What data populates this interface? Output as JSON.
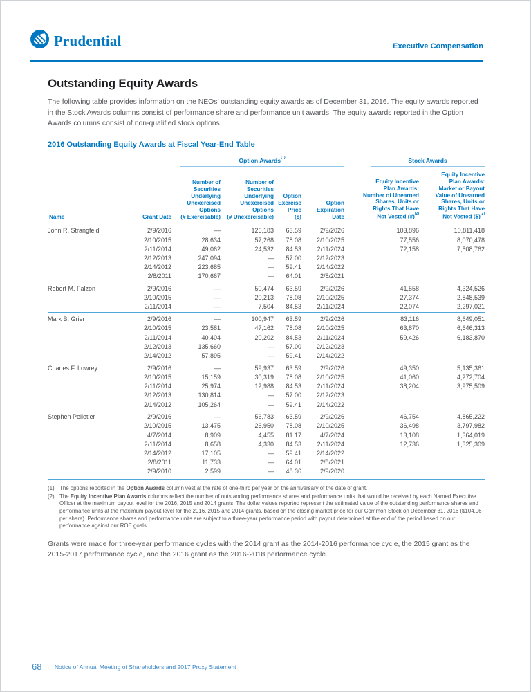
{
  "page": {
    "brand": "Prudential",
    "section_label": "Executive Compensation",
    "title": "Outstanding Equity Awards",
    "intro": "The following table provides information on the NEOs’ outstanding equity awards as of December 31, 2016. The equity awards reported in the Stock Awards columns consist of performance share and performance unit awards. The equity awards reported in the Option Awards columns consist of non-qualified stock options.",
    "closing": "Grants were made for three-year performance cycles with the 2014 grant as the 2014-2016 performance cycle, the 2015 grant as the 2015-2017 performance cycle, and the 2016 grant as the 2016-2018 performance cycle.",
    "footer": {
      "page_number": "68",
      "divider": "|",
      "text": "Notice of Annual Meeting of Shareholders and 2017 Proxy Statement"
    },
    "colors": {
      "brand_blue": "#0077C0",
      "table_rule_blue": "#4FA6DA",
      "light_rule_blue": "#8FC7EA",
      "body_gray": "#55565A"
    }
  },
  "table": {
    "caption": "2016 Outstanding Equity Awards at Fiscal Year-End Table",
    "groups": [
      {
        "label": "Option Awards",
        "sup": "(1)"
      },
      {
        "label": "Stock Awards",
        "sup": ""
      }
    ],
    "columns": [
      {
        "text": "Name",
        "sup": ""
      },
      {
        "text": "Grant Date",
        "sup": ""
      },
      {
        "text": "Number of\nSecurities\nUnderlying\nUnexercised\nOptions\n(# Exercisable)",
        "sup": ""
      },
      {
        "text": "Number of\nSecurities\nUnderlying\nUnexercised\nOptions\n(# Unexercisable)",
        "sup": ""
      },
      {
        "text": "Option\nExercise\nPrice\n($)",
        "sup": ""
      },
      {
        "text": "Option\nExpiration\nDate",
        "sup": ""
      },
      {
        "text": "Equity Incentive\nPlan Awards:\nNumber of Unearned\nShares, Units or\nRights That Have\nNot Vested (#)",
        "sup": "(2)"
      },
      {
        "text": "Equity Incentive\nPlan Awards:\nMarket or Payout\nValue of Unearned\nShares, Units or\nRights That Have\nNot Vested ($)",
        "sup": "(2)"
      }
    ],
    "rows": [
      [
        "John R. Strangfeld",
        "2/9/2016",
        "—",
        "126,183",
        "63.59",
        "2/9/2026",
        "103,896",
        "10,811,418"
      ],
      [
        "",
        "2/10/2015",
        "28,634",
        "57,268",
        "78.08",
        "2/10/2025",
        "77,556",
        "8,070,478"
      ],
      [
        "",
        "2/11/2014",
        "49,062",
        "24,532",
        "84.53",
        "2/11/2024",
        "72,158",
        "7,508,762"
      ],
      [
        "",
        "2/12/2013",
        "247,094",
        "—",
        "57.00",
        "2/12/2023",
        "",
        ""
      ],
      [
        "",
        "2/14/2012",
        "223,685",
        "—",
        "59.41",
        "2/14/2022",
        "",
        ""
      ],
      [
        "",
        "2/8/2011",
        "170,667",
        "—",
        "64.01",
        "2/8/2021",
        "",
        ""
      ],
      [
        "Robert M. Falzon",
        "2/9/2016",
        "—",
        "50,474",
        "63.59",
        "2/9/2026",
        "41,558",
        "4,324,526"
      ],
      [
        "",
        "2/10/2015",
        "—",
        "20,213",
        "78.08",
        "2/10/2025",
        "27,374",
        "2,848,539"
      ],
      [
        "",
        "2/11/2014",
        "—",
        "7,504",
        "84.53",
        "2/11/2024",
        "22,074",
        "2,297,021"
      ],
      [
        "Mark B. Grier",
        "2/9/2016",
        "—",
        "100,947",
        "63.59",
        "2/9/2026",
        "83,116",
        "8,649,051"
      ],
      [
        "",
        "2/10/2015",
        "23,581",
        "47,162",
        "78.08",
        "2/10/2025",
        "63,870",
        "6,646,313"
      ],
      [
        "",
        "2/11/2014",
        "40,404",
        "20,202",
        "84.53",
        "2/11/2024",
        "59,426",
        "6,183,870"
      ],
      [
        "",
        "2/12/2013",
        "135,660",
        "—",
        "57.00",
        "2/12/2023",
        "",
        ""
      ],
      [
        "",
        "2/14/2012",
        "57,895",
        "—",
        "59.41",
        "2/14/2022",
        "",
        ""
      ],
      [
        "Charles F. Lowrey",
        "2/9/2016",
        "—",
        "59,937",
        "63.59",
        "2/9/2026",
        "49,350",
        "5,135,361"
      ],
      [
        "",
        "2/10/2015",
        "15,159",
        "30,319",
        "78.08",
        "2/10/2025",
        "41,060",
        "4,272,704"
      ],
      [
        "",
        "2/11/2014",
        "25,974",
        "12,988",
        "84.53",
        "2/11/2024",
        "38,204",
        "3,975,509"
      ],
      [
        "",
        "2/12/2013",
        "130,814",
        "—",
        "57.00",
        "2/12/2023",
        "",
        ""
      ],
      [
        "",
        "2/14/2012",
        "105,264",
        "—",
        "59.41",
        "2/14/2022",
        "",
        ""
      ],
      [
        "Stephen Pelletier",
        "2/9/2016",
        "—",
        "56,783",
        "63.59",
        "2/9/2026",
        "46,754",
        "4,865,222"
      ],
      [
        "",
        "2/10/2015",
        "13,475",
        "26,950",
        "78.08",
        "2/10/2025",
        "36,498",
        "3,797,982"
      ],
      [
        "",
        "4/7/2014",
        "8,909",
        "4,455",
        "81.17",
        "4/7/2024",
        "13,108",
        "1,364,019"
      ],
      [
        "",
        "2/11/2014",
        "8,658",
        "4,330",
        "84.53",
        "2/11/2024",
        "12,736",
        "1,325,309"
      ],
      [
        "",
        "2/14/2012",
        "17,105",
        "—",
        "59.41",
        "2/14/2022",
        "",
        ""
      ],
      [
        "",
        "2/8/2011",
        "11,733",
        "—",
        "64.01",
        "2/8/2021",
        "",
        ""
      ],
      [
        "",
        "2/9/2010",
        "2,599",
        "—",
        "48.36",
        "2/9/2020",
        "",
        ""
      ]
    ]
  },
  "footnotes": [
    {
      "num": "(1)",
      "pre": "The options reported in the ",
      "bold": "Option Awards",
      "post": " column vest at the rate of one-third per year on the anniversary of the date of grant."
    },
    {
      "num": "(2)",
      "pre": "The ",
      "bold": "Equity Incentive Plan Awards",
      "post": " columns reflect the number of outstanding performance shares and performance units that would be received by each Named Executive Officer at the maximum payout level for the 2016, 2015 and 2014 grants. The dollar values reported represent the estimated value of the outstanding performance shares and performance units at the maximum payout level for the 2016, 2015 and 2014 grants, based on the closing market price for our Common Stock on December 31, 2016 ($104.06 per share). Performance shares and performance units are subject to a three-year performance period with payout determined at the end of the period based on our performance against our ROE goals."
    }
  ]
}
